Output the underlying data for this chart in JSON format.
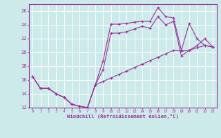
{
  "xlabel": "Windchill (Refroidissement éolien,°C)",
  "ylabel": "",
  "bg_color": "#cceaea",
  "grid_color": "#ffffff",
  "line_color": "#993399",
  "xlim": [
    -0.5,
    23.5
  ],
  "ylim": [
    12,
    27
  ],
  "yticks": [
    12,
    14,
    16,
    18,
    20,
    22,
    24,
    26
  ],
  "xticks": [
    0,
    1,
    2,
    3,
    4,
    5,
    6,
    7,
    8,
    9,
    10,
    11,
    12,
    13,
    14,
    15,
    16,
    17,
    18,
    19,
    20,
    21,
    22,
    23
  ],
  "series1_x": [
    0,
    1,
    2,
    3,
    4,
    5,
    6,
    7,
    8,
    9,
    10,
    11,
    12,
    13,
    14,
    15,
    16,
    17,
    18,
    19,
    20,
    21,
    22,
    23
  ],
  "series1_y": [
    16.5,
    14.8,
    14.8,
    14.0,
    13.5,
    12.5,
    12.2,
    12.0,
    15.3,
    18.8,
    24.1,
    24.1,
    24.2,
    24.4,
    24.5,
    24.5,
    26.5,
    25.2,
    25.0,
    20.3,
    24.2,
    22.0,
    21.0,
    20.8
  ],
  "series2_x": [
    0,
    1,
    2,
    3,
    4,
    5,
    6,
    7,
    8,
    9,
    10,
    11,
    12,
    13,
    14,
    15,
    16,
    17,
    18,
    19,
    20,
    21,
    22,
    23
  ],
  "series2_y": [
    16.5,
    14.8,
    14.8,
    14.0,
    13.5,
    12.5,
    12.2,
    12.0,
    15.3,
    17.5,
    22.8,
    22.8,
    23.0,
    23.4,
    23.8,
    23.5,
    25.2,
    24.0,
    24.5,
    19.5,
    20.3,
    21.0,
    22.0,
    20.8
  ],
  "series3_x": [
    0,
    1,
    2,
    3,
    4,
    5,
    6,
    7,
    8,
    9,
    10,
    11,
    12,
    13,
    14,
    15,
    16,
    17,
    18,
    19,
    20,
    21,
    22,
    23
  ],
  "series3_y": [
    16.5,
    14.8,
    14.8,
    14.0,
    13.5,
    12.5,
    12.2,
    12.0,
    15.3,
    15.8,
    16.3,
    16.8,
    17.3,
    17.8,
    18.3,
    18.8,
    19.3,
    19.8,
    20.3,
    20.2,
    20.3,
    20.7,
    21.0,
    20.8
  ]
}
